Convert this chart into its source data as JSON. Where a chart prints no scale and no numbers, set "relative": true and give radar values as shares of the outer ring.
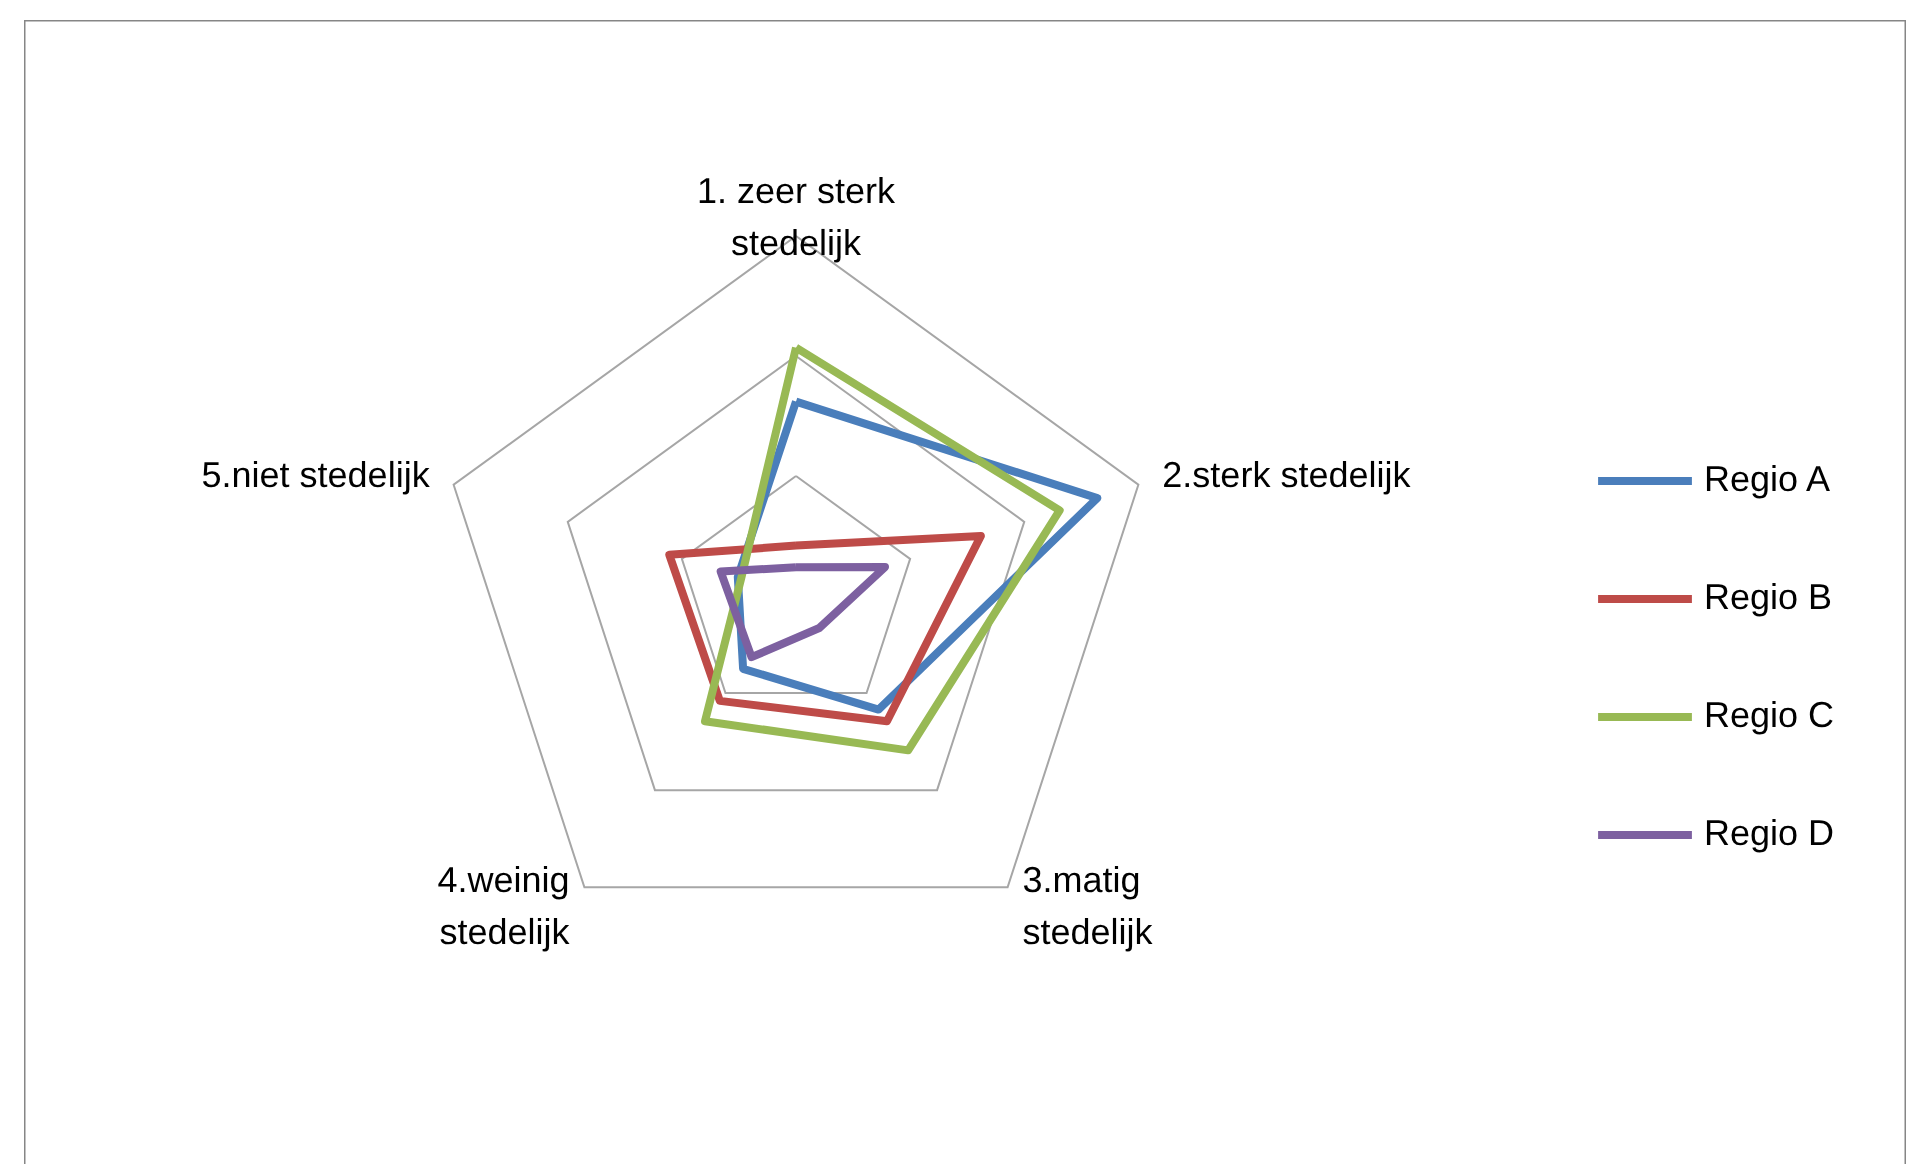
{
  "chart_data": {
    "type": "radar",
    "relative": true,
    "grid": true,
    "legend": "right",
    "categories": [
      "1. zeer sterk stedelijk",
      "2.sterk stedelijk",
      "3.matig stedelijk",
      "4.weinig stedelijk",
      "5.niet stedelijk"
    ],
    "series": [
      {
        "name": "Regio A",
        "color": "#4a7ebb",
        "values": [
          0.54,
          0.88,
          0.39,
          0.25,
          0.17
        ]
      },
      {
        "name": "Regio B",
        "color": "#be4b48",
        "values": [
          0.14,
          0.54,
          0.43,
          0.36,
          0.37
        ]
      },
      {
        "name": "Regio C",
        "color": "#98b954",
        "values": [
          0.69,
          0.77,
          0.53,
          0.43,
          0.16
        ]
      },
      {
        "name": "Regio D",
        "color": "#7d60a0",
        "values": [
          0.08,
          0.26,
          0.11,
          0.21,
          0.22
        ]
      }
    ]
  }
}
